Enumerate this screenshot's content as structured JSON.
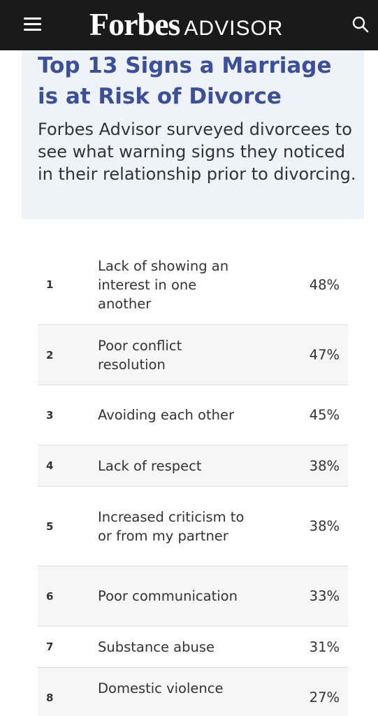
{
  "header": {
    "brand_main": "Forbes",
    "brand_sub": "ADVISOR",
    "menu_icon": "hamburger-menu-icon",
    "search_icon": "search-icon",
    "background_color": "#1a1a1a"
  },
  "intro": {
    "title": "Top 13 Signs a Marriage is at Risk of Divorce",
    "subtitle": "Forbes Advisor surveyed divorcees to see what warning signs they noticed in their relationship prior to divorcing.",
    "title_color": "#3c4f9c",
    "background_color": "#eef2f9"
  },
  "signs": [
    {
      "rank": "1",
      "label": "Lack of showing an interest in one another",
      "percent": "48%"
    },
    {
      "rank": "2",
      "label": "Poor conflict resolution",
      "percent": "47%"
    },
    {
      "rank": "3",
      "label": "Avoiding each other",
      "percent": "45%"
    },
    {
      "rank": "4",
      "label": "Lack of respect",
      "percent": "38%"
    },
    {
      "rank": "5",
      "label": "Increased criticism to or from my partner",
      "percent": "38%"
    },
    {
      "rank": "6",
      "label": "Poor communication",
      "percent": "33%"
    },
    {
      "rank": "7",
      "label": "Substance abuse",
      "percent": "31%"
    },
    {
      "rank": "8",
      "label": "Domestic violence",
      "percent": "27%"
    }
  ]
}
